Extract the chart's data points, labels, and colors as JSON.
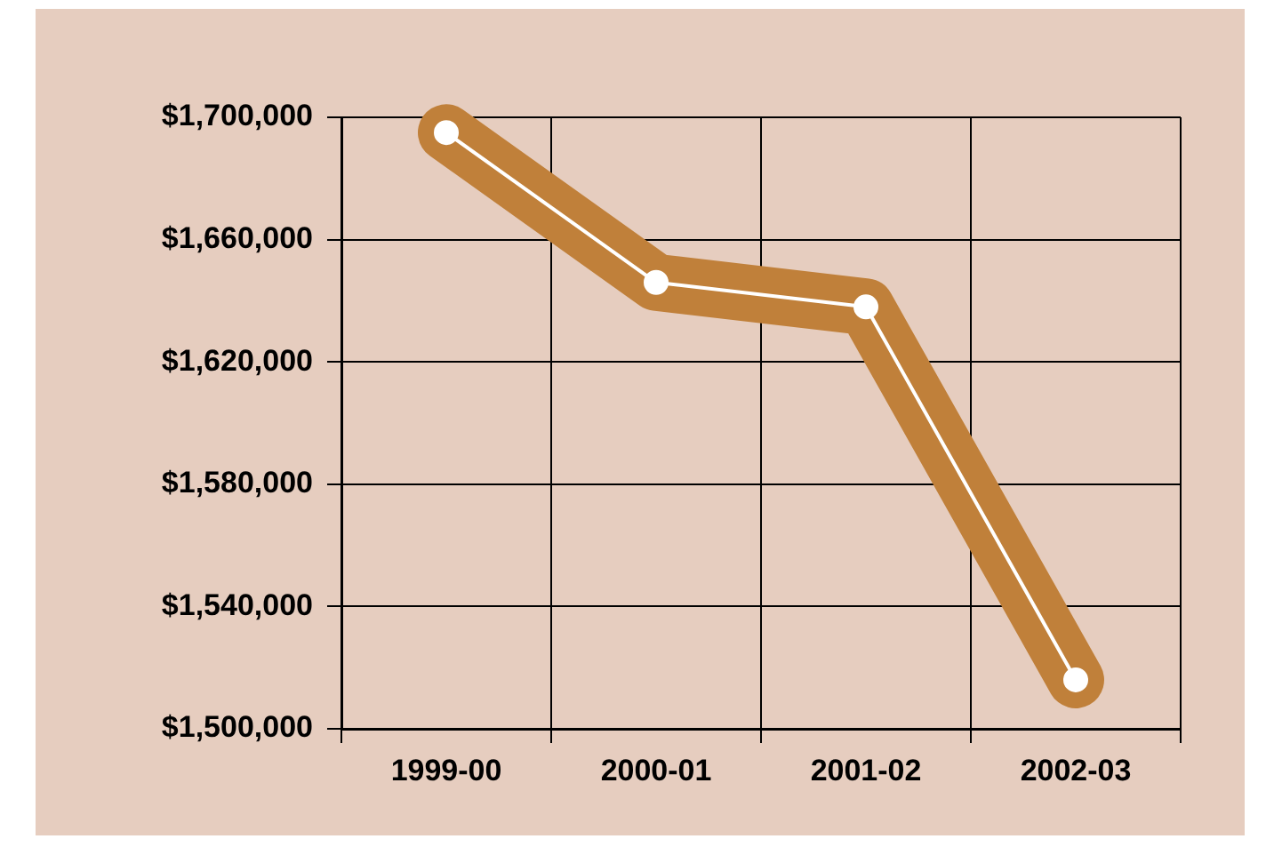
{
  "chart_data": {
    "type": "line",
    "categories": [
      "1999-00",
      "2000-01",
      "2001-02",
      "2002-03"
    ],
    "series": [
      {
        "color": "#c0803a",
        "values": [
          1695000,
          1646000,
          1638000,
          1516000
        ]
      }
    ],
    "ylim": [
      1500000,
      1700000
    ],
    "yticks": [
      {
        "value": 1500000,
        "label": "$1,500,000"
      },
      {
        "value": 1540000,
        "label": "$1,540,000"
      },
      {
        "value": 1580000,
        "label": "$1,580,000"
      },
      {
        "value": 1620000,
        "label": "$1,620,000"
      },
      {
        "value": 1660000,
        "label": "$1,660,000"
      },
      {
        "value": 1700000,
        "label": "$1,700,000"
      }
    ],
    "grid": true,
    "legend": false,
    "marker": "circle",
    "line_style": "solid"
  }
}
